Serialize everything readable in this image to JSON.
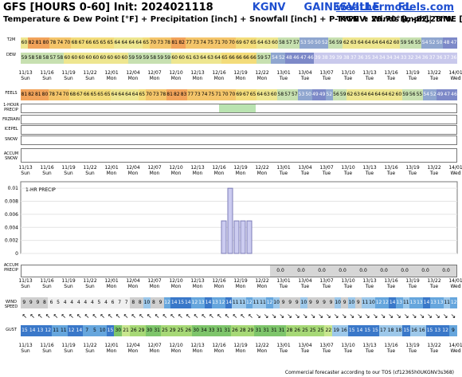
{
  "header": {
    "model": "GFS [HOURS 0-60]",
    "init": "Init: 2024021118",
    "station": "KGNV",
    "city": "GAINESVILLE",
    "state": "FL",
    "site": "weathermodels.com",
    "subtitle": "Temperature & Dew Point [°F] + Precipitation [inch] + Snowfall [inch] + P-TYPE + Winds [mph]| TIME [EST]",
    "location": "KGNV: 29.70°N, -82.28°W"
  },
  "row_labels": {
    "t2m": "T2M",
    "dew": "DEW",
    "feels": "FEELS",
    "precip1h": "1-HOUR PRECIP",
    "frzrain": "FRZRAIN",
    "icepel": "ICEPEL",
    "snow": "SNOW",
    "accum_snow": "ACCUM SNOW",
    "accum_precip": "ACCUM PRECIP",
    "wind": "WIND SPEED",
    "gust": "GUST"
  },
  "time_axis": {
    "dates": [
      "11/13",
      "11/16",
      "11/19",
      "11/22",
      "12/01",
      "12/04",
      "12/07",
      "12/10",
      "12/13",
      "12/16",
      "12/19",
      "12/22",
      "13/01",
      "13/04",
      "13/07",
      "13/10",
      "13/13",
      "13/16",
      "13/19",
      "13/22",
      "14/01"
    ],
    "days": [
      "Sun",
      "Sun",
      "Sun",
      "Sun",
      "Mon",
      "Mon",
      "Mon",
      "Mon",
      "Mon",
      "Mon",
      "Mon",
      "Mon",
      "Tue",
      "Tue",
      "Tue",
      "Tue",
      "Tue",
      "Tue",
      "Tue",
      "Tue",
      "Wed"
    ]
  },
  "t2m": [
    60,
    82,
    81,
    80,
    78,
    74,
    70,
    68,
    67,
    66,
    65,
    65,
    65,
    64,
    64,
    64,
    64,
    65,
    70,
    73,
    78,
    81,
    82,
    77,
    73,
    74,
    75,
    71,
    70,
    70,
    69,
    67,
    65,
    64,
    63,
    60,
    58,
    57,
    57,
    53,
    50,
    50,
    52,
    56,
    59,
    62,
    63,
    64,
    64,
    64,
    64,
    62,
    60,
    59,
    56,
    55,
    54,
    52,
    50,
    48,
    47
  ],
  "dew": [
    59,
    58,
    58,
    58,
    57,
    58,
    60,
    60,
    60,
    60,
    60,
    60,
    60,
    60,
    60,
    59,
    59,
    59,
    58,
    59,
    59,
    60,
    60,
    61,
    63,
    64,
    63,
    64,
    65,
    66,
    66,
    66,
    66,
    59,
    57,
    54,
    52,
    48,
    46,
    47,
    46,
    39,
    38,
    39,
    39,
    38,
    37,
    36,
    35,
    34,
    34,
    34,
    34,
    33,
    32,
    34,
    36,
    37,
    36,
    37,
    36
  ],
  "feels": [
    81,
    82,
    81,
    80,
    78,
    74,
    70,
    68,
    67,
    66,
    65,
    65,
    65,
    64,
    64,
    64,
    64,
    65,
    70,
    73,
    78,
    81,
    82,
    83,
    77,
    73,
    74,
    75,
    71,
    70,
    70,
    69,
    67,
    65,
    64,
    63,
    60,
    58,
    57,
    57,
    53,
    50,
    49,
    49,
    52,
    56,
    59,
    62,
    63,
    64,
    64,
    64,
    64,
    62,
    60,
    59,
    56,
    55,
    54,
    52,
    49,
    47,
    46
  ],
  "chart": {
    "label": "1-HR PRECIP",
    "y_ticks": [
      "0.01",
      "0.008",
      "0.006",
      "0.004",
      "0.002",
      "0"
    ],
    "ylim": [
      0,
      0.011
    ]
  },
  "chart_data": {
    "type": "bar",
    "title": "1-HR PRECIP",
    "ylim": [
      0,
      0.011
    ],
    "x": [
      "12/17",
      "12/18",
      "12/19",
      "12/20",
      "12/21"
    ],
    "values": [
      0.005,
      0.01,
      0.005,
      0.005,
      0.005
    ]
  },
  "accum_precip": [
    "0.0",
    "0.0",
    "0.0",
    "0.0",
    "0.0",
    "0.0",
    "0.0",
    "0.0",
    "0.0",
    "0.0",
    "0.0",
    "0.0",
    "0.0",
    "0.0",
    "0.0",
    "0.0",
    "0.0",
    "0.0",
    "0.0",
    "0.0",
    "0.0"
  ],
  "wind": [
    9,
    9,
    9,
    8,
    6,
    5,
    4,
    4,
    4,
    4,
    4,
    5,
    4,
    6,
    7,
    7,
    8,
    8,
    10,
    8,
    9,
    12,
    14,
    15,
    14,
    12,
    13,
    14,
    13,
    12,
    14,
    11,
    11,
    12,
    11,
    11,
    12,
    10,
    9,
    9,
    9,
    10,
    9,
    9,
    9,
    9,
    10,
    9,
    10,
    9,
    11,
    10,
    12,
    12,
    14,
    13,
    11,
    13,
    13,
    14,
    13,
    13,
    11,
    12
  ],
  "gust": [
    15,
    14,
    13,
    12,
    11,
    11,
    12,
    14,
    7,
    5,
    10,
    15,
    30,
    21,
    26,
    29,
    30,
    31,
    25,
    29,
    25,
    26,
    30,
    34,
    33,
    31,
    31,
    26,
    28,
    29,
    31,
    31,
    31,
    31,
    28,
    26,
    25,
    25,
    25,
    22,
    19,
    16,
    15,
    14,
    15,
    15,
    17,
    18,
    18,
    15,
    16,
    16,
    15,
    13,
    12,
    9
  ],
  "footer": "Commercial forecaster according to our TOS (cf12365h0UKGNV3s368)"
}
